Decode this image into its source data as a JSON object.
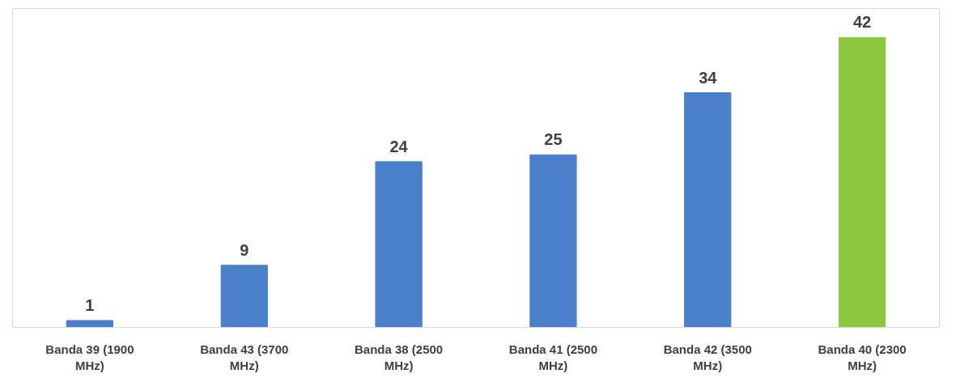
{
  "chart_data": {
    "type": "bar",
    "categories": [
      "Banda 39 (1900 MHz)",
      "Banda 43 (3700 MHz)",
      "Banda 38 (2500 MHz)",
      "Banda 41 (2500 MHz)",
      "Banda 42 (3500 MHz)",
      "Banda 40 (2300 MHz)"
    ],
    "values": [
      1,
      9,
      24,
      25,
      34,
      42
    ],
    "colors": [
      "#4a7fc9",
      "#4a7fc9",
      "#4a7fc9",
      "#4a7fc9",
      "#4a7fc9",
      "#8dc63f"
    ],
    "data_labels": true
  }
}
